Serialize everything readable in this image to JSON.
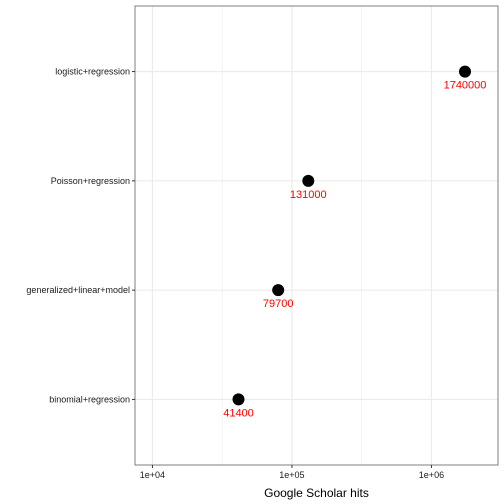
{
  "chart_data": {
    "type": "scatter",
    "title": "",
    "xlabel": "Google Scholar hits",
    "ylabel": "",
    "x_scale": "log10",
    "xlim": [
      7500,
      3000000
    ],
    "x_ticks": [
      10000,
      100000,
      1000000
    ],
    "x_tick_labels": [
      "1e+04",
      "1e+05",
      "1e+06"
    ],
    "categories": [
      "binomial+regression",
      "generalized+linear+model",
      "Poisson+regression",
      "logistic+regression"
    ],
    "values": [
      41400,
      79700,
      131000,
      1740000
    ],
    "labels": [
      "41400",
      "79700",
      "131000",
      "1740000"
    ],
    "grid": true,
    "legend": "none",
    "colors": {
      "point": "#000000",
      "label": "#ff0000",
      "panel_border": "#7f7f7f",
      "grid": "#ebebeb"
    }
  }
}
